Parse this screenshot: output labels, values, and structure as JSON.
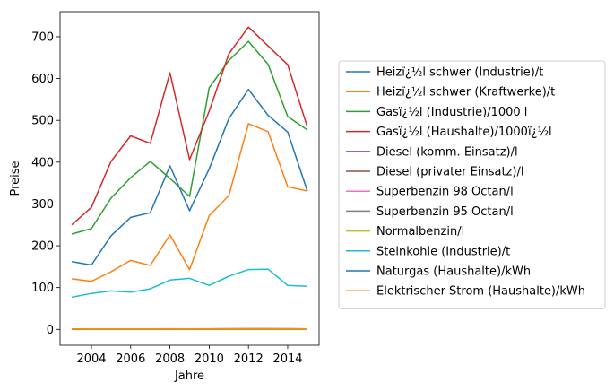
{
  "chart_data": {
    "type": "line",
    "xlabel": "Jahre",
    "ylabel": "Preise",
    "xlim": [
      2002.4,
      2015.6
    ],
    "ylim": [
      -38,
      760
    ],
    "xticks": [
      2004,
      2006,
      2008,
      2010,
      2012,
      2014
    ],
    "yticks": [
      0,
      100,
      200,
      300,
      400,
      500,
      600,
      700
    ],
    "grid": false,
    "legend_position": "right, outside plot",
    "x": [
      2003,
      2004,
      2005,
      2006,
      2007,
      2008,
      2009,
      2010,
      2011,
      2012,
      2013,
      2014,
      2015
    ],
    "series": [
      {
        "name": "Heizï¿½l schwer (Industrie)/t",
        "color": "#1f77b4",
        "values": [
          162,
          154,
          224,
          268,
          279,
          391,
          284,
          384,
          504,
          574,
          512,
          472,
          331
        ]
      },
      {
        "name": "Heizï¿½l schwer (Kraftwerke)/t",
        "color": "#ff7f0e",
        "values": [
          121,
          115,
          138,
          165,
          153,
          226,
          143,
          272,
          320,
          492,
          473,
          341,
          331
        ]
      },
      {
        "name": "Gasï¿½l (Industrie)/1000 l",
        "color": "#2ca02c",
        "values": [
          228,
          241,
          314,
          363,
          402,
          361,
          318,
          578,
          643,
          689,
          634,
          509,
          477
        ]
      },
      {
        "name": "Gasï¿½l (Haushalte)/1000ï¿½l",
        "color": "#d62728",
        "values": [
          250,
          292,
          402,
          463,
          445,
          614,
          406,
          522,
          659,
          723,
          678,
          633,
          484
        ]
      },
      {
        "name": "Diesel (komm. Einsatz)/l",
        "color": "#9467bd",
        "values": [
          0.8,
          0.8,
          0.9,
          1.0,
          1.0,
          1.2,
          1.0,
          1.1,
          1.3,
          1.4,
          1.4,
          1.3,
          1.1
        ]
      },
      {
        "name": "Diesel (privater Einsatz)/l",
        "color": "#8c564b",
        "values": [
          0.9,
          0.9,
          1.0,
          1.1,
          1.1,
          1.3,
          1.1,
          1.2,
          1.4,
          1.5,
          1.5,
          1.4,
          1.2
        ]
      },
      {
        "name": "Superbenzin 98 Octan/l",
        "color": "#e377c2",
        "values": [
          1.0,
          1.1,
          1.2,
          1.3,
          1.3,
          1.4,
          1.3,
          1.4,
          1.5,
          1.6,
          1.6,
          1.5,
          1.3
        ]
      },
      {
        "name": "Superbenzin 95 Octan/l",
        "color": "#7f7f7f",
        "values": [
          0.9,
          1.0,
          1.1,
          1.2,
          1.2,
          1.3,
          1.2,
          1.3,
          1.4,
          1.5,
          1.5,
          1.4,
          1.2
        ]
      },
      {
        "name": "Normalbenzin/l",
        "color": "#bcbd22",
        "values": [
          0.9,
          1.0,
          1.1,
          1.2,
          1.2,
          1.3,
          1.2,
          1.3,
          1.4,
          1.5,
          1.5,
          1.4,
          1.2
        ]
      },
      {
        "name": "Steinkohle (Industrie)/t",
        "color": "#17becf",
        "values": [
          77,
          86,
          92,
          89,
          97,
          118,
          122,
          105,
          127,
          143,
          144,
          105,
          103
        ]
      },
      {
        "name": "Naturgas (Haushalte)/kWh",
        "color": "#1f77b4",
        "values": [
          0.05,
          0.05,
          0.05,
          0.06,
          0.06,
          0.07,
          0.07,
          0.07,
          0.08,
          0.08,
          0.08,
          0.08,
          0.08
        ]
      },
      {
        "name": "Elektrischer Strom (Haushalte)/kWh",
        "color": "#ff7f0e",
        "values": [
          0.11,
          0.11,
          0.11,
          0.12,
          0.12,
          0.13,
          0.13,
          0.14,
          0.14,
          0.15,
          0.16,
          0.16,
          0.16
        ]
      }
    ]
  }
}
